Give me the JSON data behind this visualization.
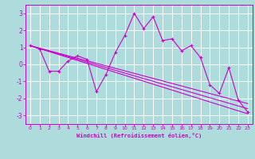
{
  "x_values": [
    0,
    1,
    2,
    3,
    4,
    5,
    6,
    7,
    8,
    9,
    10,
    11,
    12,
    13,
    14,
    15,
    16,
    17,
    18,
    19,
    20,
    21,
    22,
    23
  ],
  "main_line": [
    1.1,
    0.9,
    -0.4,
    -0.4,
    0.2,
    0.5,
    0.3,
    -1.6,
    -0.6,
    0.7,
    1.7,
    3.0,
    2.1,
    2.8,
    1.4,
    1.5,
    0.8,
    1.1,
    0.4,
    -1.2,
    -1.7,
    -0.2,
    -2.1,
    -2.8
  ],
  "env_lines": [
    [
      [
        0,
        23
      ],
      [
        1.1,
        -2.6
      ]
    ],
    [
      [
        0,
        23
      ],
      [
        1.1,
        -2.9
      ]
    ],
    [
      [
        0,
        23
      ],
      [
        1.1,
        -2.3
      ]
    ]
  ],
  "background_color": "#aedcdc",
  "grid_color": "#ffffff",
  "line_color": "#cc00cc",
  "xlabel": "Windchill (Refroidissement éolien,°C)",
  "xlim": [
    -0.5,
    23.5
  ],
  "ylim": [
    -3.5,
    3.5
  ],
  "xticks": [
    0,
    1,
    2,
    3,
    4,
    5,
    6,
    7,
    8,
    9,
    10,
    11,
    12,
    13,
    14,
    15,
    16,
    17,
    18,
    19,
    20,
    21,
    22,
    23
  ],
  "yticks": [
    -3,
    -2,
    -1,
    0,
    1,
    2,
    3
  ],
  "figsize": [
    3.2,
    2.0
  ],
  "dpi": 100
}
